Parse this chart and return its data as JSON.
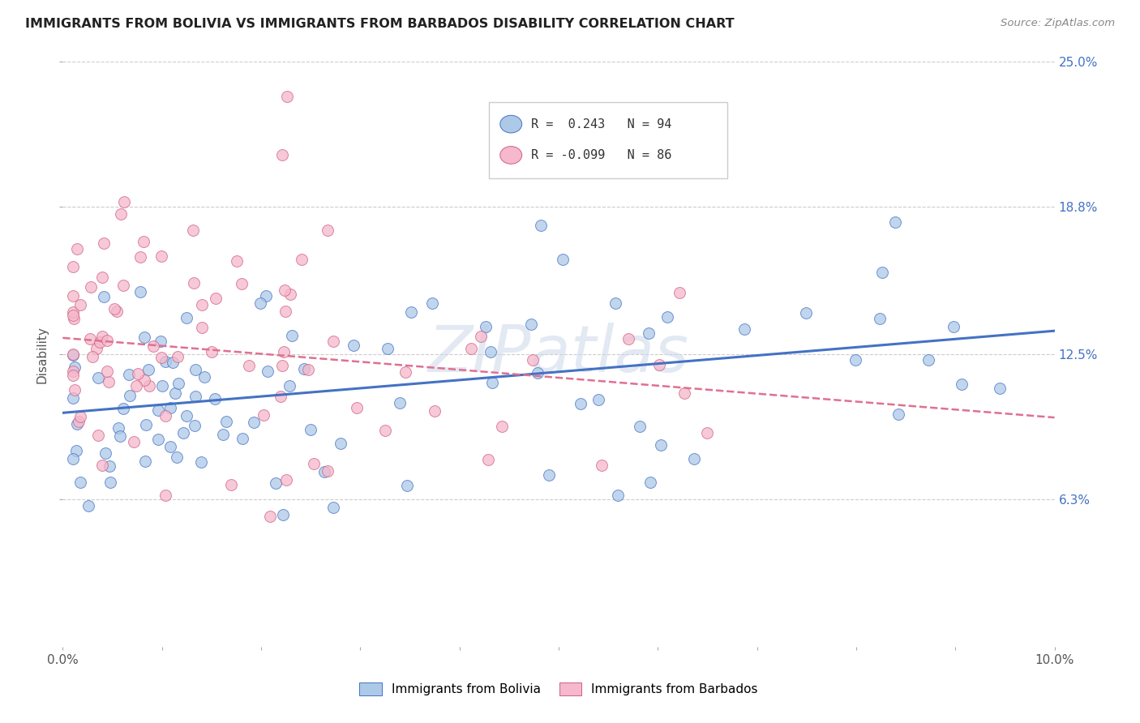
{
  "title": "IMMIGRANTS FROM BOLIVIA VS IMMIGRANTS FROM BARBADOS DISABILITY CORRELATION CHART",
  "source": "Source: ZipAtlas.com",
  "ylabel": "Disability",
  "xlim": [
    0.0,
    0.1
  ],
  "ylim": [
    0.0,
    0.25
  ],
  "yticks": [
    0.063,
    0.125,
    0.188,
    0.25
  ],
  "ytick_labels": [
    "6.3%",
    "12.5%",
    "18.8%",
    "25.0%"
  ],
  "legend_r_bolivia": "R =  0.243",
  "legend_n_bolivia": "N = 94",
  "legend_r_barbados": "R = -0.099",
  "legend_n_barbados": "N = 86",
  "color_bolivia": "#adc9e8",
  "color_barbados": "#f5b8cc",
  "line_color_bolivia": "#4472c4",
  "line_color_barbados": "#e07090",
  "background_color": "#ffffff",
  "bolivia_line_x0": 0.0,
  "bolivia_line_y0": 0.1,
  "bolivia_line_x1": 0.1,
  "bolivia_line_y1": 0.135,
  "barbados_line_x0": 0.0,
  "barbados_line_y0": 0.132,
  "barbados_line_x1": 0.1,
  "barbados_line_y1": 0.098
}
